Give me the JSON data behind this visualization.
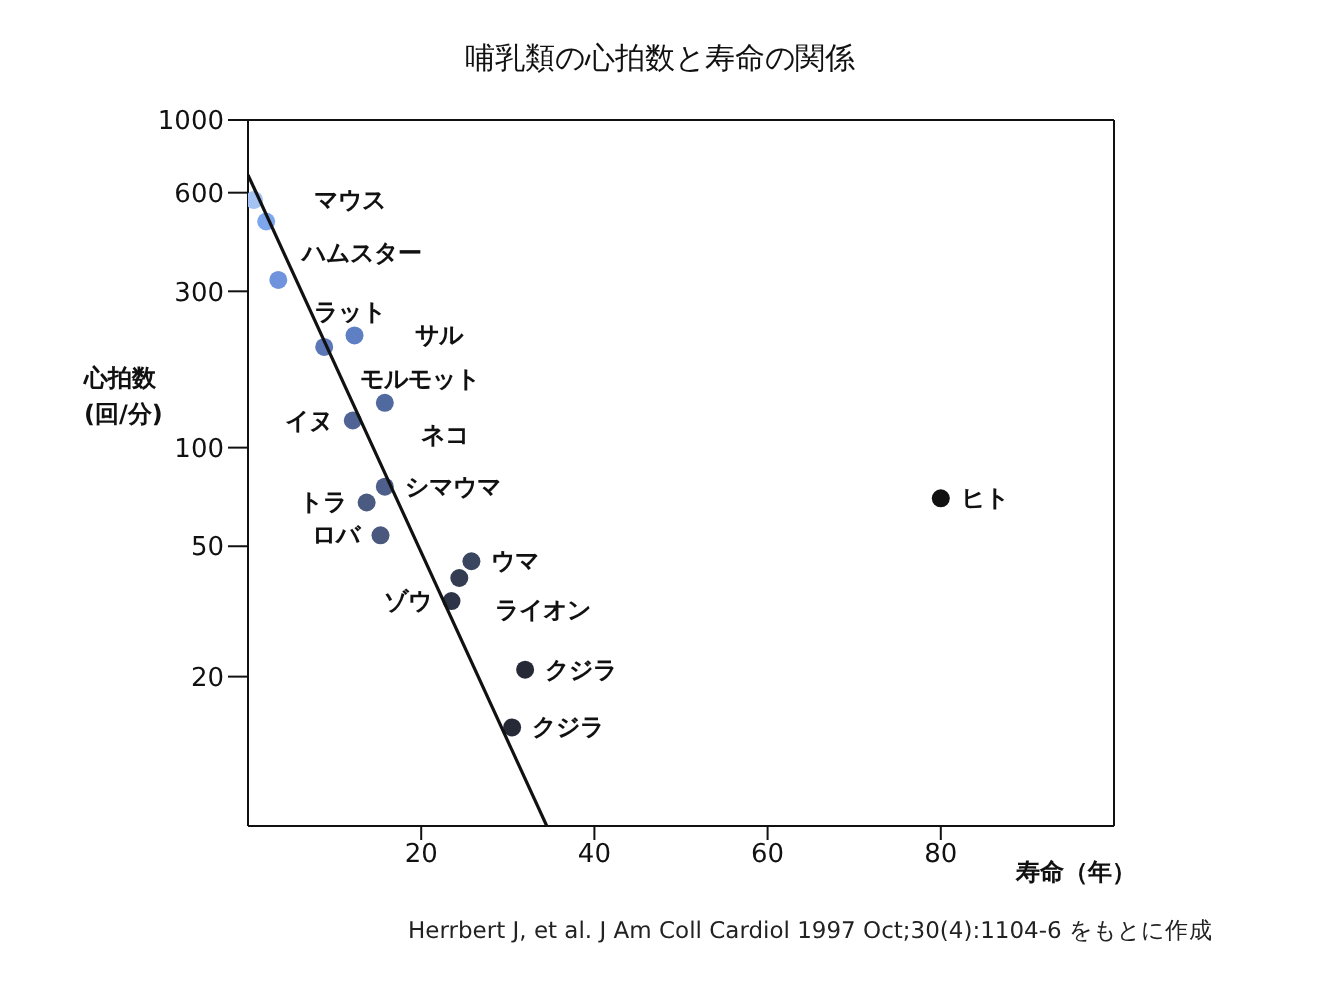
{
  "chart_data": {
    "type": "scatter",
    "title": "哺乳類の心拍数と寿命の関係",
    "xlabel": "寿命（年）",
    "ylabel": "心拍数 (回/分)",
    "xlim": [
      0,
      100
    ],
    "xticks": [
      20,
      40,
      60,
      80
    ],
    "ylim": [
      7,
      1000
    ],
    "yticks": [
      20,
      50,
      100,
      300,
      600,
      1000
    ],
    "log": "y",
    "grid": false,
    "legend": false,
    "marker": "circle",
    "series": [
      {
        "type": "scatter",
        "x": [
          0.7,
          2.1,
          3.5,
          12.3,
          8.8,
          15.8,
          12.1,
          15.8,
          13.7,
          15.3,
          25.8,
          24.4,
          23.5,
          32,
          30.5,
          80
        ],
        "values": [
          570,
          490,
          325,
          220,
          203,
          137,
          121,
          76,
          68,
          54,
          45,
          40,
          34,
          21,
          14,
          70
        ],
        "colors": [
          "#a4c2f2",
          "#7ea6ec",
          "#6f93dc",
          "#5f7fc4",
          "#5b77b5",
          "#50699f",
          "#4f6494",
          "#4d5f8a",
          "#4a5a80",
          "#4a587d",
          "#3a4560",
          "#343c52",
          "#2e3448",
          "#262a36",
          "#262a36",
          "#111111"
        ]
      },
      {
        "type": "line",
        "x": [
          0,
          34.5
        ],
        "values": [
          680,
          7
        ],
        "color": "#111111",
        "line_style": "solid",
        "marker": "none"
      }
    ],
    "annotations": [
      {
        "text": "マウス",
        "x": 0.7,
        "y": 570
      },
      {
        "text": "ハムスター",
        "x": 2.1,
        "y": 490
      },
      {
        "text": "ラット",
        "x": 3.5,
        "y": 325
      },
      {
        "text": "サル",
        "x": 12.3,
        "y": 220
      },
      {
        "text": "モルモット",
        "x": 8.8,
        "y": 203
      },
      {
        "text": "ネコ",
        "x": 15.8,
        "y": 137
      },
      {
        "text": "イヌ",
        "x": 12.1,
        "y": 121
      },
      {
        "text": "シマウマ",
        "x": 15.8,
        "y": 76
      },
      {
        "text": "トラ",
        "x": 13.7,
        "y": 68
      },
      {
        "text": "ロバ",
        "x": 15.3,
        "y": 54
      },
      {
        "text": "ウマ",
        "x": 25.8,
        "y": 45
      },
      {
        "text": "ライオン",
        "x": 24.4,
        "y": 40
      },
      {
        "text": "ゾウ",
        "x": 23.5,
        "y": 34
      },
      {
        "text": "クジラ",
        "x": 32,
        "y": 21
      },
      {
        "text": "クジラ",
        "x": 30.5,
        "y": 14
      },
      {
        "text": "ヒト",
        "x": 80,
        "y": 70
      },
      "Herrbert J, et al. J Am Coll Cardiol 1997 Oct;30(4):1104-6 をもとに作成"
    ]
  }
}
